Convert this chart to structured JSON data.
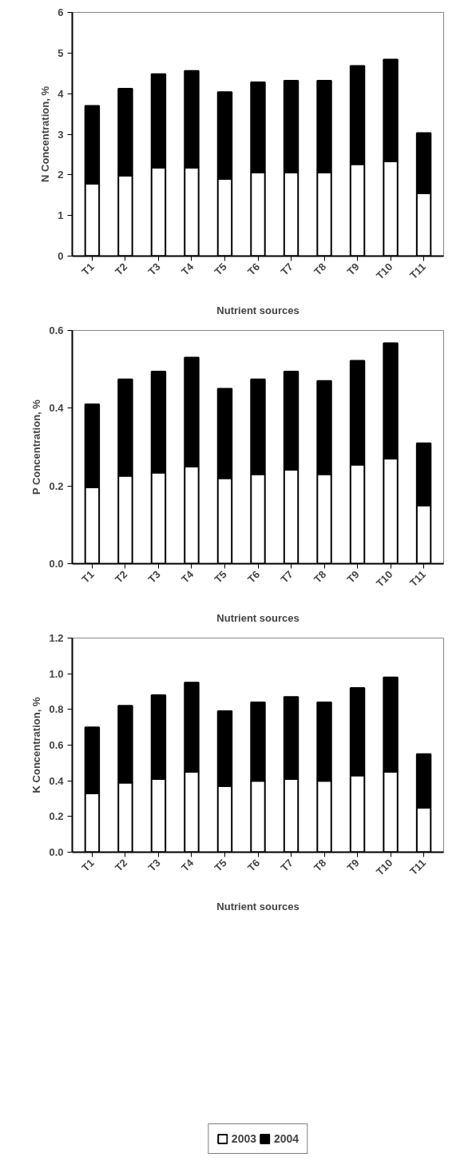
{
  "chart_data": [
    {
      "type": "bar",
      "stacked": true,
      "xlabel": "Nutrient sources",
      "ylabel": "N Concentration, %",
      "categories": [
        "T1",
        "T2",
        "T3",
        "T4",
        "T5",
        "T6",
        "T7",
        "T8",
        "T9",
        "T10",
        "T11"
      ],
      "ylim": [
        0,
        6
      ],
      "yticks": [
        0,
        1,
        2,
        3,
        4,
        5,
        6
      ],
      "grid": false,
      "legend": false,
      "series": [
        {
          "color": "#ffffff",
          "values": [
            1.78,
            1.98,
            2.18,
            2.18,
            1.9,
            2.06,
            2.06,
            2.06,
            2.26,
            2.33,
            1.55
          ]
        },
        {
          "color": "#000000",
          "values": [
            1.92,
            2.14,
            2.3,
            2.38,
            2.14,
            2.22,
            2.26,
            2.26,
            2.42,
            2.51,
            1.48
          ]
        }
      ]
    },
    {
      "type": "bar",
      "stacked": true,
      "xlabel": "Nutrient sources",
      "ylabel": "P Concentration, %",
      "categories": [
        "T1",
        "T2",
        "T3",
        "T4",
        "T5",
        "T6",
        "T7",
        "T8",
        "T9",
        "T10",
        "T11"
      ],
      "ylim": [
        0,
        0.6
      ],
      "yticks": [
        {
          "value": 0,
          "label": "0.0"
        },
        {
          "value": 0.2,
          "label": "0.2"
        },
        {
          "value": 0.4,
          "label": "0.4"
        },
        {
          "value": 0.6,
          "label": "0.6"
        }
      ],
      "grid": false,
      "legend": false,
      "series": [
        {
          "color": "#ffffff",
          "values": [
            0.197,
            0.226,
            0.234,
            0.25,
            0.22,
            0.23,
            0.242,
            0.23,
            0.255,
            0.27,
            0.15
          ]
        },
        {
          "color": "#000000",
          "values": [
            0.213,
            0.248,
            0.26,
            0.28,
            0.23,
            0.244,
            0.252,
            0.24,
            0.267,
            0.297,
            0.16
          ]
        }
      ]
    },
    {
      "type": "bar",
      "stacked": true,
      "xlabel": "Nutrient sources",
      "ylabel": "K Concentration, %",
      "categories": [
        "T1",
        "T2",
        "T3",
        "T4",
        "T5",
        "T6",
        "T7",
        "T8",
        "T9",
        "T10",
        "T11"
      ],
      "ylim": [
        0,
        1.2
      ],
      "yticks": [
        {
          "value": 0,
          "label": "0.0"
        },
        {
          "value": 0.2,
          "label": "0.2"
        },
        {
          "value": 0.4,
          "label": "0.4"
        },
        {
          "value": 0.6,
          "label": "0.6"
        },
        {
          "value": 0.8,
          "label": "0.8"
        },
        {
          "value": 1.0,
          "label": "1.0"
        },
        {
          "value": 1.2,
          "label": "1.2"
        }
      ],
      "grid": false,
      "legend": "bottom",
      "series": [
        {
          "name": "2003",
          "color": "#ffffff",
          "values": [
            0.33,
            0.39,
            0.41,
            0.45,
            0.37,
            0.4,
            0.41,
            0.4,
            0.43,
            0.45,
            0.25
          ]
        },
        {
          "name": "2004",
          "color": "#000000",
          "values": [
            0.37,
            0.43,
            0.47,
            0.5,
            0.42,
            0.44,
            0.46,
            0.44,
            0.49,
            0.53,
            0.3
          ]
        }
      ]
    }
  ]
}
